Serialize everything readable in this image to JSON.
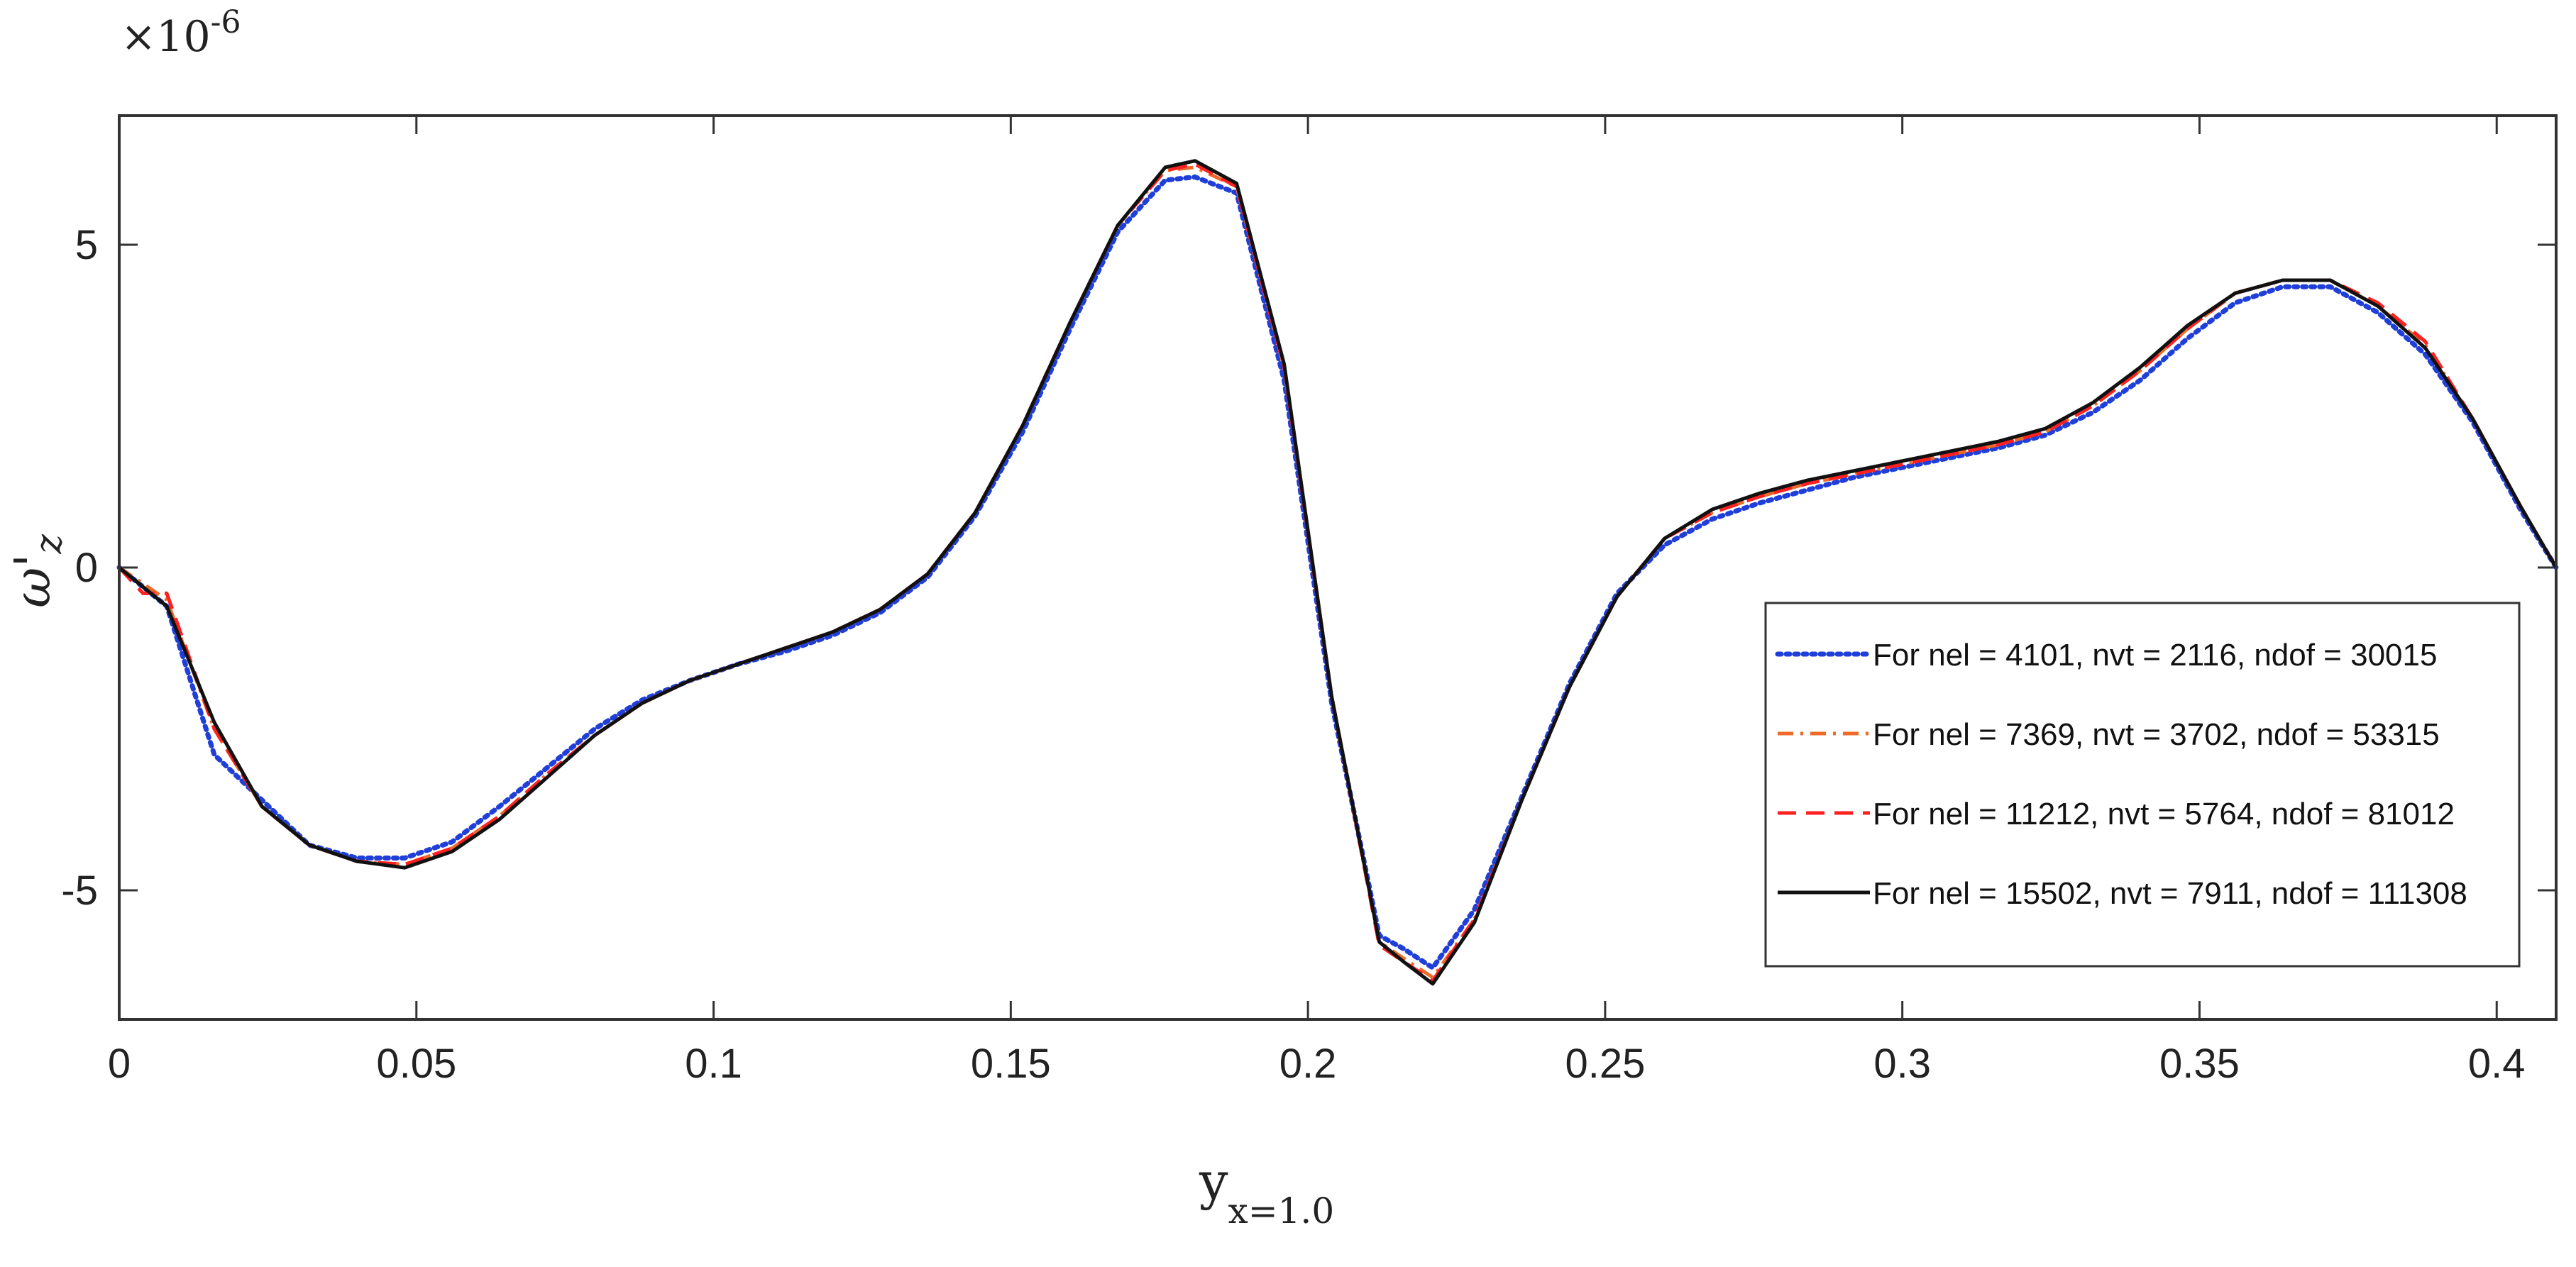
{
  "chart_data": {
    "type": "line",
    "xlabel": {
      "base": "y",
      "subscript": "x=1.0"
    },
    "ylabel": {
      "base": "ω",
      "prime": "'",
      "subscript": "z"
    },
    "y_exponent": {
      "base": "×10",
      "power": "-6"
    },
    "xlim": [
      0,
      0.41
    ],
    "ylim": [
      -7,
      7
    ],
    "x_ticks": [
      0,
      0.05,
      0.1,
      0.15,
      0.2,
      0.25,
      0.3,
      0.35,
      0.4
    ],
    "x_tick_labels": [
      "0",
      "0.05",
      "0.1",
      "0.15",
      "0.2",
      "0.25",
      "0.3",
      "0.35",
      "0.4"
    ],
    "y_ticks": [
      -5,
      0,
      5
    ],
    "y_tick_labels": [
      "-5",
      "0",
      "5"
    ],
    "grid": false,
    "legend_position": "bottom-right",
    "series": [
      {
        "name": "For nel = 4101, nvt = 2116, ndof = 30015",
        "color": "#1f3fd8",
        "style": "dotted",
        "x": [
          0,
          0.008,
          0.016,
          0.024,
          0.032,
          0.04,
          0.048,
          0.056,
          0.064,
          0.072,
          0.08,
          0.088,
          0.096,
          0.104,
          0.112,
          0.12,
          0.128,
          0.136,
          0.144,
          0.152,
          0.16,
          0.168,
          0.176,
          0.181,
          0.188,
          0.196,
          0.204,
          0.212,
          0.216,
          0.221,
          0.228,
          0.236,
          0.244,
          0.252,
          0.26,
          0.268,
          0.276,
          0.284,
          0.292,
          0.3,
          0.308,
          0.316,
          0.324,
          0.332,
          0.34,
          0.348,
          0.356,
          0.364,
          0.372,
          0.38,
          0.388,
          0.396,
          0.404,
          0.41
        ],
        "y": [
          0,
          -0.6,
          -2.9,
          -3.6,
          -4.3,
          -4.5,
          -4.5,
          -4.25,
          -3.7,
          -3.1,
          -2.5,
          -2.05,
          -1.75,
          -1.5,
          -1.3,
          -1.05,
          -0.7,
          -0.15,
          0.8,
          2.1,
          3.7,
          5.2,
          6.0,
          6.05,
          5.8,
          2.9,
          -2.1,
          -5.7,
          -5.9,
          -6.2,
          -5.3,
          -3.55,
          -1.8,
          -0.4,
          0.35,
          0.75,
          1.0,
          1.2,
          1.4,
          1.55,
          1.7,
          1.85,
          2.05,
          2.4,
          2.9,
          3.55,
          4.1,
          4.35,
          4.35,
          3.95,
          3.3,
          2.25,
          0.9,
          0
        ]
      },
      {
        "name": "For nel = 7369, nvt = 3702, ndof = 53315",
        "color": "#ee6a2a",
        "style": "dashdot",
        "x": [
          0,
          0.008,
          0.016,
          0.024,
          0.032,
          0.04,
          0.048,
          0.056,
          0.064,
          0.072,
          0.08,
          0.088,
          0.096,
          0.104,
          0.112,
          0.12,
          0.128,
          0.136,
          0.144,
          0.152,
          0.16,
          0.168,
          0.176,
          0.181,
          0.188,
          0.196,
          0.204,
          0.212,
          0.216,
          0.221,
          0.228,
          0.236,
          0.244,
          0.252,
          0.26,
          0.268,
          0.276,
          0.284,
          0.292,
          0.3,
          0.308,
          0.316,
          0.324,
          0.332,
          0.34,
          0.348,
          0.356,
          0.364,
          0.372,
          0.38,
          0.388,
          0.396,
          0.404,
          0.41
        ],
        "y": [
          0,
          -0.5,
          -2.5,
          -3.7,
          -4.3,
          -4.55,
          -4.6,
          -4.35,
          -3.85,
          -3.2,
          -2.6,
          -2.1,
          -1.75,
          -1.5,
          -1.25,
          -1.0,
          -0.65,
          -0.1,
          0.85,
          2.2,
          3.8,
          5.3,
          6.15,
          6.2,
          5.9,
          3.1,
          -2.0,
          -5.8,
          -6.05,
          -6.35,
          -5.45,
          -3.6,
          -1.85,
          -0.45,
          0.45,
          0.85,
          1.1,
          1.3,
          1.45,
          1.6,
          1.75,
          1.9,
          2.1,
          2.5,
          3.05,
          3.7,
          4.25,
          4.45,
          4.45,
          4.05,
          3.45,
          2.3,
          0.95,
          0
        ]
      },
      {
        "name": "For nel = 11212, nvt = 5764, ndof = 81012",
        "color": "#ff2020",
        "style": "dashed",
        "x": [
          0,
          0.004,
          0.008,
          0.016,
          0.024,
          0.032,
          0.04,
          0.048,
          0.056,
          0.064,
          0.072,
          0.08,
          0.088,
          0.096,
          0.104,
          0.112,
          0.12,
          0.128,
          0.136,
          0.144,
          0.152,
          0.16,
          0.168,
          0.176,
          0.181,
          0.188,
          0.196,
          0.204,
          0.212,
          0.216,
          0.221,
          0.228,
          0.236,
          0.244,
          0.252,
          0.26,
          0.268,
          0.276,
          0.284,
          0.292,
          0.3,
          0.308,
          0.316,
          0.324,
          0.332,
          0.34,
          0.348,
          0.356,
          0.364,
          0.372,
          0.38,
          0.388,
          0.396,
          0.404,
          0.41
        ],
        "y": [
          0,
          -0.4,
          -0.4,
          -2.5,
          -3.7,
          -4.3,
          -4.55,
          -4.6,
          -4.35,
          -3.85,
          -3.2,
          -2.6,
          -2.1,
          -1.75,
          -1.5,
          -1.25,
          -1.0,
          -0.65,
          -0.1,
          0.85,
          2.2,
          3.8,
          5.3,
          6.15,
          6.25,
          5.9,
          3.1,
          -2.0,
          -5.85,
          -6.1,
          -6.4,
          -5.45,
          -3.6,
          -1.85,
          -0.45,
          0.45,
          0.85,
          1.1,
          1.3,
          1.45,
          1.6,
          1.75,
          1.9,
          2.1,
          2.5,
          3.05,
          3.7,
          4.25,
          4.45,
          4.45,
          4.1,
          3.5,
          2.3,
          0.95,
          0
        ]
      },
      {
        "name": "For nel = 15502, nvt = 7911, ndof = 111308",
        "color": "#111111",
        "style": "solid",
        "x": [
          0,
          0.008,
          0.016,
          0.024,
          0.032,
          0.04,
          0.048,
          0.056,
          0.064,
          0.072,
          0.08,
          0.088,
          0.096,
          0.104,
          0.112,
          0.12,
          0.128,
          0.136,
          0.144,
          0.152,
          0.16,
          0.168,
          0.176,
          0.181,
          0.188,
          0.196,
          0.204,
          0.212,
          0.216,
          0.221,
          0.228,
          0.236,
          0.244,
          0.252,
          0.26,
          0.268,
          0.276,
          0.284,
          0.292,
          0.3,
          0.308,
          0.316,
          0.324,
          0.332,
          0.34,
          0.348,
          0.356,
          0.364,
          0.372,
          0.38,
          0.388,
          0.396,
          0.404,
          0.41
        ],
        "y": [
          0,
          -0.6,
          -2.4,
          -3.7,
          -4.3,
          -4.55,
          -4.65,
          -4.4,
          -3.9,
          -3.25,
          -2.6,
          -2.1,
          -1.75,
          -1.5,
          -1.25,
          -1.0,
          -0.65,
          -0.1,
          0.85,
          2.2,
          3.8,
          5.3,
          6.2,
          6.3,
          5.95,
          3.15,
          -2.0,
          -5.8,
          -6.1,
          -6.45,
          -5.5,
          -3.6,
          -1.85,
          -0.45,
          0.45,
          0.9,
          1.15,
          1.35,
          1.5,
          1.65,
          1.8,
          1.95,
          2.15,
          2.55,
          3.1,
          3.75,
          4.25,
          4.45,
          4.45,
          4.05,
          3.4,
          2.3,
          0.95,
          0
        ]
      }
    ]
  }
}
